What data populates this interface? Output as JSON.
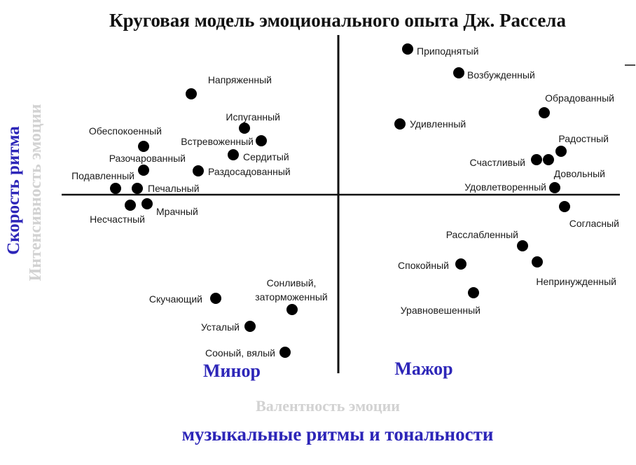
{
  "title": "Круговая модель эмоционального опыта Дж. Рассела",
  "y_axis": {
    "primary": "Скорость ритма",
    "secondary": "Интенсивность эмоции"
  },
  "x_axis": {
    "primary": "музыкальные ритмы и тональности",
    "secondary": "Валентность эмоции"
  },
  "quadrants": {
    "left": "Минор",
    "right": "Мажор"
  },
  "colors": {
    "dots": "#111111",
    "accent": "#2d26b8",
    "faded": "#d2d2d2",
    "text": "#1a1a1a"
  },
  "emotions": [
    {
      "label": "Приподнятый",
      "valence": 0.42,
      "arousal": 0.98
    },
    {
      "label": "Возбужденный",
      "valence": 0.76,
      "arousal": 0.82
    },
    {
      "label": "Обрадованный",
      "valence": 1.37,
      "arousal": 0.53
    },
    {
      "label": "Удивленный",
      "valence": 0.37,
      "arousal": 0.45
    },
    {
      "label": "Радостный",
      "valence": 1.48,
      "arousal": 0.26
    },
    {
      "label": "Счастливый",
      "valence": 1.3,
      "arousal": 0.2
    },
    {
      "label": "Довольный",
      "valence": 1.37,
      "arousal": 0.2
    },
    {
      "label": "Удовлетворенный",
      "valence": 1.43,
      "arousal": 0.05
    },
    {
      "label": "Согласный",
      "valence": 1.49,
      "arousal": -0.07
    },
    {
      "label": "Расслабленный",
      "valence": 1.2,
      "arousal": -0.35
    },
    {
      "label": "Непринужденный",
      "valence": 1.3,
      "arousal": -0.45
    },
    {
      "label": "Спокойный",
      "valence": 0.82,
      "arousal": -0.46
    },
    {
      "label": "Уравновешенный",
      "valence": 0.88,
      "arousal": -0.65
    },
    {
      "label": "Напряженный",
      "valence": -1.05,
      "arousal": 0.67
    },
    {
      "label": "Испуганный",
      "valence": -0.64,
      "arousal": 0.44
    },
    {
      "label": "Встревоженный",
      "valence": -0.52,
      "arousal": 0.33
    },
    {
      "label": "Сердитый",
      "valence": -0.68,
      "arousal": 0.23
    },
    {
      "label": "Раздосадованный",
      "valence": -0.94,
      "arousal": 0.12
    },
    {
      "label": "Обеспокоенный",
      "valence": -1.3,
      "arousal": 0.29
    },
    {
      "label": "Разочарованный",
      "valence": -1.3,
      "arousal": 0.12
    },
    {
      "label": "Подавленный",
      "valence": -1.49,
      "arousal": 0.0
    },
    {
      "label": "Печальный",
      "valence": -1.35,
      "arousal": 0.0
    },
    {
      "label": "Несчастный",
      "valence": -1.38,
      "arousal": -0.11
    },
    {
      "label": "Мрачный",
      "valence": -1.27,
      "arousal": -0.11
    },
    {
      "label": "Скучающий",
      "valence": -0.82,
      "arousal": -0.71
    },
    {
      "label": "Сонливый, заторможенный",
      "valence": -0.32,
      "arousal": -0.76
    },
    {
      "label": "Усталый",
      "valence": -0.58,
      "arousal": -0.9
    },
    {
      "label": "Сооный, вялый",
      "valence": -0.37,
      "arousal": -1.07
    }
  ]
}
